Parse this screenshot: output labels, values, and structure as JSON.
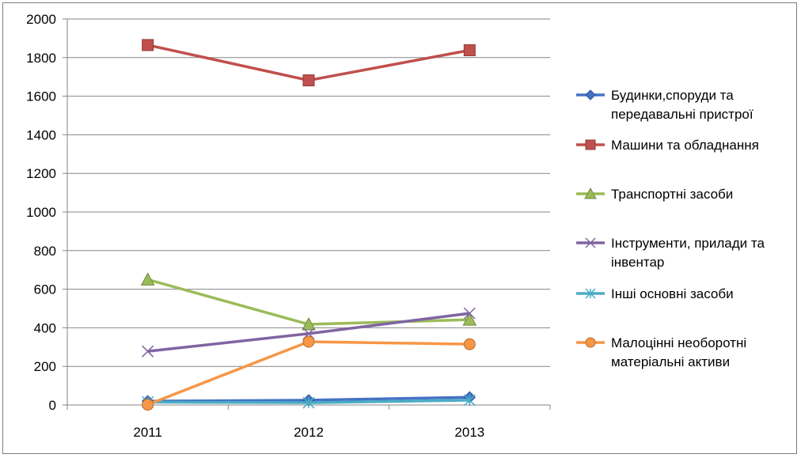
{
  "chart_data": {
    "type": "line",
    "categories": [
      "2011",
      "2012",
      "2013"
    ],
    "ylim": [
      0,
      2000
    ],
    "yticks": [
      "0",
      "200",
      "400",
      "600",
      "800",
      "1000",
      "1200",
      "1400",
      "1600",
      "1800",
      "2000"
    ],
    "grid": true,
    "legend_position": "right",
    "series": [
      {
        "name": "Будинки,споруди та передавальні пристрої",
        "legend_lines": [
          "Будинки,споруди та",
          "передавальні пристрої"
        ],
        "values": [
          20,
          25,
          40
        ],
        "color": "#4472C4",
        "marker": "diamond"
      },
      {
        "name": "Машини та обладнання",
        "legend_lines": [
          "Машини та обладнання"
        ],
        "values": [
          1865,
          1682,
          1838
        ],
        "color": "#C0504D",
        "marker": "square"
      },
      {
        "name": "Транспортні засоби",
        "legend_lines": [
          "Транспортні засоби"
        ],
        "values": [
          650,
          418,
          442
        ],
        "color": "#9BBB59",
        "marker": "triangle"
      },
      {
        "name": "Інструменти, прилади та інвентар",
        "legend_lines": [
          "Інструменти, прилади та",
          "інвентар"
        ],
        "values": [
          278,
          370,
          475
        ],
        "color": "#8064A2",
        "marker": "x"
      },
      {
        "name": "Інші основні засоби",
        "legend_lines": [
          "Інші основні засоби"
        ],
        "values": [
          15,
          12,
          25
        ],
        "color": "#4BACC6",
        "marker": "star"
      },
      {
        "name": "Малоцінні необоротні матеріальні активи",
        "legend_lines": [
          "Малоцінні необоротні",
          "матеріальні активи"
        ],
        "values": [
          2,
          328,
          315
        ],
        "color": "#F79646",
        "marker": "circle"
      }
    ]
  }
}
